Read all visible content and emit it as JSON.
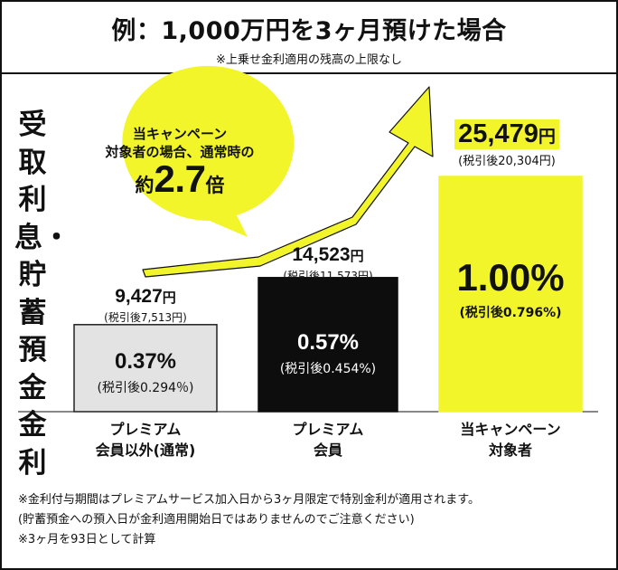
{
  "header": {
    "title": "例：1,000万円を3ヶ月預けた場合",
    "subtitle": "※上乗せ金利適用の残高の上限なし"
  },
  "y_label": "受取利息・貯蓄預金金利",
  "callout": {
    "line1": "当キャンペーン",
    "line2": "対象者の場合、通常時の",
    "multiplier_prefix": "約",
    "multiplier_value": "2.7",
    "multiplier_suffix": "倍"
  },
  "bars": [
    {
      "category": "プレミアム\n会員以外(通常)",
      "amount": "9,427",
      "yen": "円",
      "after_tax": "(税引後7,513円)",
      "rate": "0.37%",
      "rate_after_tax": "(税引後0.294％)"
    },
    {
      "category": "プレミアム\n会員",
      "amount": "14,523",
      "yen": "円",
      "after_tax": "(税引後11,573円)",
      "rate": "0.57%",
      "rate_after_tax": "(税引後0.454%)"
    },
    {
      "category": "当キャンペーン\n対象者",
      "amount": "25,479",
      "yen": "円",
      "after_tax": "(税引後20,304円)",
      "rate": "1.00%",
      "rate_after_tax": "(税引後0.796%)"
    }
  ],
  "footnotes": {
    "note1": "※金利付与期間はプレミアムサービス加入日から3ヶ月限定で特別金利が適用されます。",
    "note2": "(貯蓄預金への預入日が金利適用開始日ではありませんのでご注意ください)",
    "note3": "※3ヶ月を93日として計算"
  },
  "colors": {
    "accent": "#F2F52A",
    "dark": "#0D0D0D",
    "light_gray": "#E3E3E3",
    "outline": "#222222"
  },
  "chart_data": {
    "type": "bar",
    "categories": [
      "プレミアム会員以外(通常)",
      "プレミアム会員",
      "当キャンペーン対象者"
    ],
    "series": [
      {
        "values": [
          9427,
          14523,
          25479
        ]
      }
    ],
    "after_tax_values": [
      7513,
      11573,
      20304
    ],
    "rates_percent": [
      0.37,
      0.57,
      1.0
    ],
    "rates_after_tax_percent": [
      0.294,
      0.454,
      0.796
    ],
    "ratio_annotation": 2.7,
    "grid": false,
    "legend": "none"
  }
}
